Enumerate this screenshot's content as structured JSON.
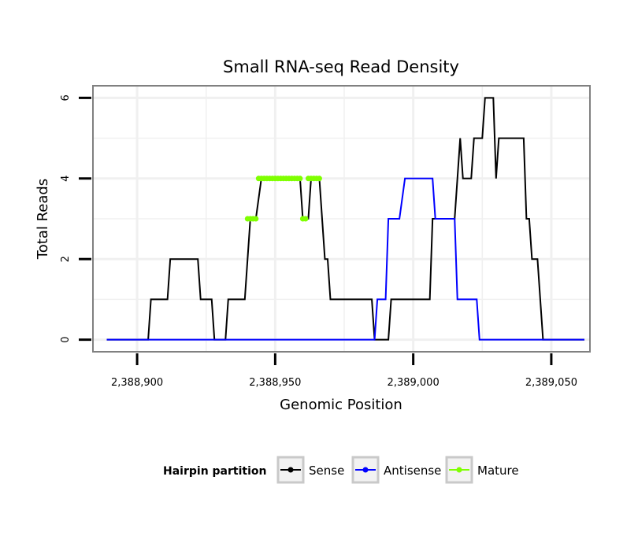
{
  "chart_data": {
    "type": "line",
    "title": "Small RNA-seq Read Density",
    "xlabel": "Genomic Position",
    "ylabel": "Total Reads",
    "xlim": [
      2388884,
      2389064
    ],
    "ylim": [
      -0.3,
      6.3
    ],
    "x_ticks": [
      2388900,
      2388950,
      2389000,
      2389050
    ],
    "x_tick_labels": [
      "2,388,900",
      "2,388,950",
      "2,389,000",
      "2,389,050"
    ],
    "y_ticks": [
      0,
      2,
      4,
      6
    ],
    "y_tick_labels": [
      "0",
      "2",
      "4",
      "6"
    ],
    "grid": true,
    "legend": {
      "title": "Hairpin partition",
      "position": "bottom"
    },
    "series": [
      {
        "name": "Sense",
        "color": "#000000",
        "style": "line",
        "points": [
          [
            2388889,
            0
          ],
          [
            2388904,
            0
          ],
          [
            2388905,
            1
          ],
          [
            2388911,
            1
          ],
          [
            2388912,
            2
          ],
          [
            2388922,
            2
          ],
          [
            2388923,
            1
          ],
          [
            2388927,
            1
          ],
          [
            2388928,
            0
          ],
          [
            2388932,
            0
          ],
          [
            2388933,
            1
          ],
          [
            2388939,
            1
          ],
          [
            2388941,
            3
          ],
          [
            2388943,
            3
          ],
          [
            2388945,
            4
          ],
          [
            2388959,
            4
          ],
          [
            2388960,
            3
          ],
          [
            2388962,
            3
          ],
          [
            2388963,
            4
          ],
          [
            2388966,
            4
          ],
          [
            2388968,
            2
          ],
          [
            2388969,
            2
          ],
          [
            2388970,
            1
          ],
          [
            2388985,
            1
          ],
          [
            2388986,
            0
          ],
          [
            2388991,
            0
          ],
          [
            2388992,
            1
          ],
          [
            2389006,
            1
          ],
          [
            2389007,
            3
          ],
          [
            2389015,
            3
          ],
          [
            2389017,
            5
          ],
          [
            2389018,
            4
          ],
          [
            2389021,
            4
          ],
          [
            2389022,
            5
          ],
          [
            2389025,
            5
          ],
          [
            2389026,
            6
          ],
          [
            2389029,
            6
          ],
          [
            2389030,
            4
          ],
          [
            2389031,
            5
          ],
          [
            2389040,
            5
          ],
          [
            2389041,
            3
          ],
          [
            2389042,
            3
          ],
          [
            2389043,
            2
          ],
          [
            2389045,
            2
          ],
          [
            2389047,
            0
          ],
          [
            2389062,
            0
          ]
        ]
      },
      {
        "name": "Antisense",
        "color": "#0000ff",
        "style": "line",
        "points": [
          [
            2388889,
            0
          ],
          [
            2388986,
            0
          ],
          [
            2388987,
            1
          ],
          [
            2388990,
            1
          ],
          [
            2388991,
            3
          ],
          [
            2388995,
            3
          ],
          [
            2388997,
            4
          ],
          [
            2389007,
            4
          ],
          [
            2389008,
            3
          ],
          [
            2389015,
            3
          ],
          [
            2389016,
            1
          ],
          [
            2389023,
            1
          ],
          [
            2389024,
            0
          ],
          [
            2389062,
            0
          ]
        ]
      },
      {
        "name": "Mature",
        "color": "#7fff00",
        "style": "points",
        "points": [
          [
            2388940,
            3
          ],
          [
            2388941,
            3
          ],
          [
            2388942,
            3
          ],
          [
            2388943,
            3
          ],
          [
            2388944,
            4
          ],
          [
            2388945,
            4
          ],
          [
            2388946,
            4
          ],
          [
            2388947,
            4
          ],
          [
            2388948,
            4
          ],
          [
            2388949,
            4
          ],
          [
            2388950,
            4
          ],
          [
            2388951,
            4
          ],
          [
            2388952,
            4
          ],
          [
            2388953,
            4
          ],
          [
            2388954,
            4
          ],
          [
            2388955,
            4
          ],
          [
            2388956,
            4
          ],
          [
            2388957,
            4
          ],
          [
            2388958,
            4
          ],
          [
            2388959,
            4
          ],
          [
            2388960,
            3
          ],
          [
            2388961,
            3
          ],
          [
            2388962,
            4
          ],
          [
            2388963,
            4
          ],
          [
            2388964,
            4
          ],
          [
            2388965,
            4
          ],
          [
            2388966,
            4
          ]
        ]
      }
    ]
  }
}
